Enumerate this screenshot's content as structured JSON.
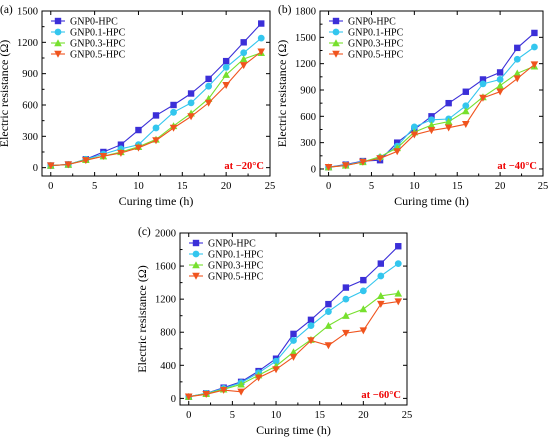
{
  "figure": {
    "colors": {
      "GNP0-HPC": "#3b2fd8",
      "GNP0.1-HPC": "#33c6ee",
      "GNP0.3-HPC": "#77e02e",
      "GNP0.5-HPC": "#f0541e"
    },
    "markers": {
      "GNP0-HPC": "square",
      "GNP0.1-HPC": "circle",
      "GNP0.3-HPC": "triangle-up",
      "GNP0.5-HPC": "triangle-down"
    }
  },
  "chart_data": [
    {
      "type": "line",
      "panel_label": "(a)",
      "xlabel": "Curing time (h)",
      "ylabel": "Electric resistance (Ω)",
      "annotation": "at −20°C",
      "xlim": [
        -1,
        25
      ],
      "ylim": [
        -80,
        1500
      ],
      "xticks": [
        0,
        5,
        10,
        15,
        20,
        25
      ],
      "yticks": [
        0,
        300,
        600,
        900,
        1200,
        1500
      ],
      "legend_position": "top-left",
      "x": [
        0,
        2,
        4,
        6,
        8,
        10,
        12,
        14,
        16,
        18,
        20,
        22,
        24
      ],
      "series": [
        {
          "name": "GNP0-HPC",
          "values": [
            20,
            30,
            80,
            150,
            220,
            360,
            500,
            600,
            710,
            850,
            1020,
            1200,
            1380
          ]
        },
        {
          "name": "GNP0.1-HPC",
          "values": [
            20,
            30,
            80,
            130,
            180,
            220,
            380,
            530,
            620,
            780,
            960,
            1100,
            1240
          ]
        },
        {
          "name": "GNP0.3-HPC",
          "values": [
            20,
            30,
            75,
            110,
            150,
            200,
            270,
            400,
            520,
            660,
            890,
            1040,
            1100
          ]
        },
        {
          "name": "GNP0.5-HPC",
          "values": [
            20,
            30,
            70,
            110,
            140,
            190,
            260,
            380,
            490,
            620,
            790,
            980,
            1110
          ]
        }
      ]
    },
    {
      "type": "line",
      "panel_label": "(b)",
      "xlabel": "Curing time (h)",
      "ylabel": "Electric resistance (Ω)",
      "annotation": "at −40°C",
      "xlim": [
        -1,
        25
      ],
      "ylim": [
        -80,
        1800
      ],
      "xticks": [
        0,
        5,
        10,
        15,
        20,
        25
      ],
      "yticks": [
        0,
        300,
        600,
        900,
        1200,
        1500,
        1800
      ],
      "legend_position": "top-left",
      "x": [
        0,
        2,
        4,
        6,
        8,
        10,
        12,
        14,
        16,
        18,
        20,
        22,
        24
      ],
      "series": [
        {
          "name": "GNP0-HPC",
          "values": [
            20,
            50,
            90,
            100,
            300,
            450,
            600,
            750,
            880,
            1020,
            1100,
            1380,
            1550
          ]
        },
        {
          "name": "GNP0.1-HPC",
          "values": [
            20,
            45,
            85,
            130,
            260,
            480,
            560,
            570,
            720,
            970,
            1020,
            1250,
            1390
          ]
        },
        {
          "name": "GNP0.3-HPC",
          "values": [
            20,
            40,
            80,
            140,
            240,
            420,
            500,
            540,
            660,
            820,
            950,
            1090,
            1170
          ]
        },
        {
          "name": "GNP0.5-HPC",
          "values": [
            20,
            40,
            80,
            120,
            200,
            390,
            440,
            470,
            510,
            810,
            880,
            1030,
            1190
          ]
        }
      ]
    },
    {
      "type": "line",
      "panel_label": "(c)",
      "xlabel": "Curing time (h)",
      "ylabel": "Electric resistance (Ω)",
      "annotation": "at −60°C",
      "xlim": [
        -1,
        25
      ],
      "ylim": [
        -80,
        2000
      ],
      "xticks": [
        0,
        5,
        10,
        15,
        20,
        25
      ],
      "yticks": [
        0,
        400,
        800,
        1200,
        1600,
        2000
      ],
      "legend_position": "top-left",
      "x": [
        0,
        2,
        4,
        6,
        8,
        10,
        12,
        14,
        16,
        18,
        20,
        22,
        24
      ],
      "series": [
        {
          "name": "GNP0-HPC",
          "values": [
            20,
            60,
            130,
            200,
            330,
            480,
            780,
            950,
            1140,
            1340,
            1430,
            1630,
            1840
          ]
        },
        {
          "name": "GNP0.1-HPC",
          "values": [
            20,
            60,
            120,
            190,
            310,
            450,
            700,
            880,
            1050,
            1200,
            1300,
            1480,
            1630
          ]
        },
        {
          "name": "GNP0.3-HPC",
          "values": [
            20,
            55,
            110,
            170,
            280,
            390,
            560,
            710,
            880,
            1000,
            1080,
            1240,
            1270
          ]
        },
        {
          "name": "GNP0.5-HPC",
          "values": [
            20,
            50,
            100,
            80,
            250,
            350,
            500,
            700,
            640,
            790,
            820,
            1140,
            1170
          ]
        }
      ]
    }
  ]
}
